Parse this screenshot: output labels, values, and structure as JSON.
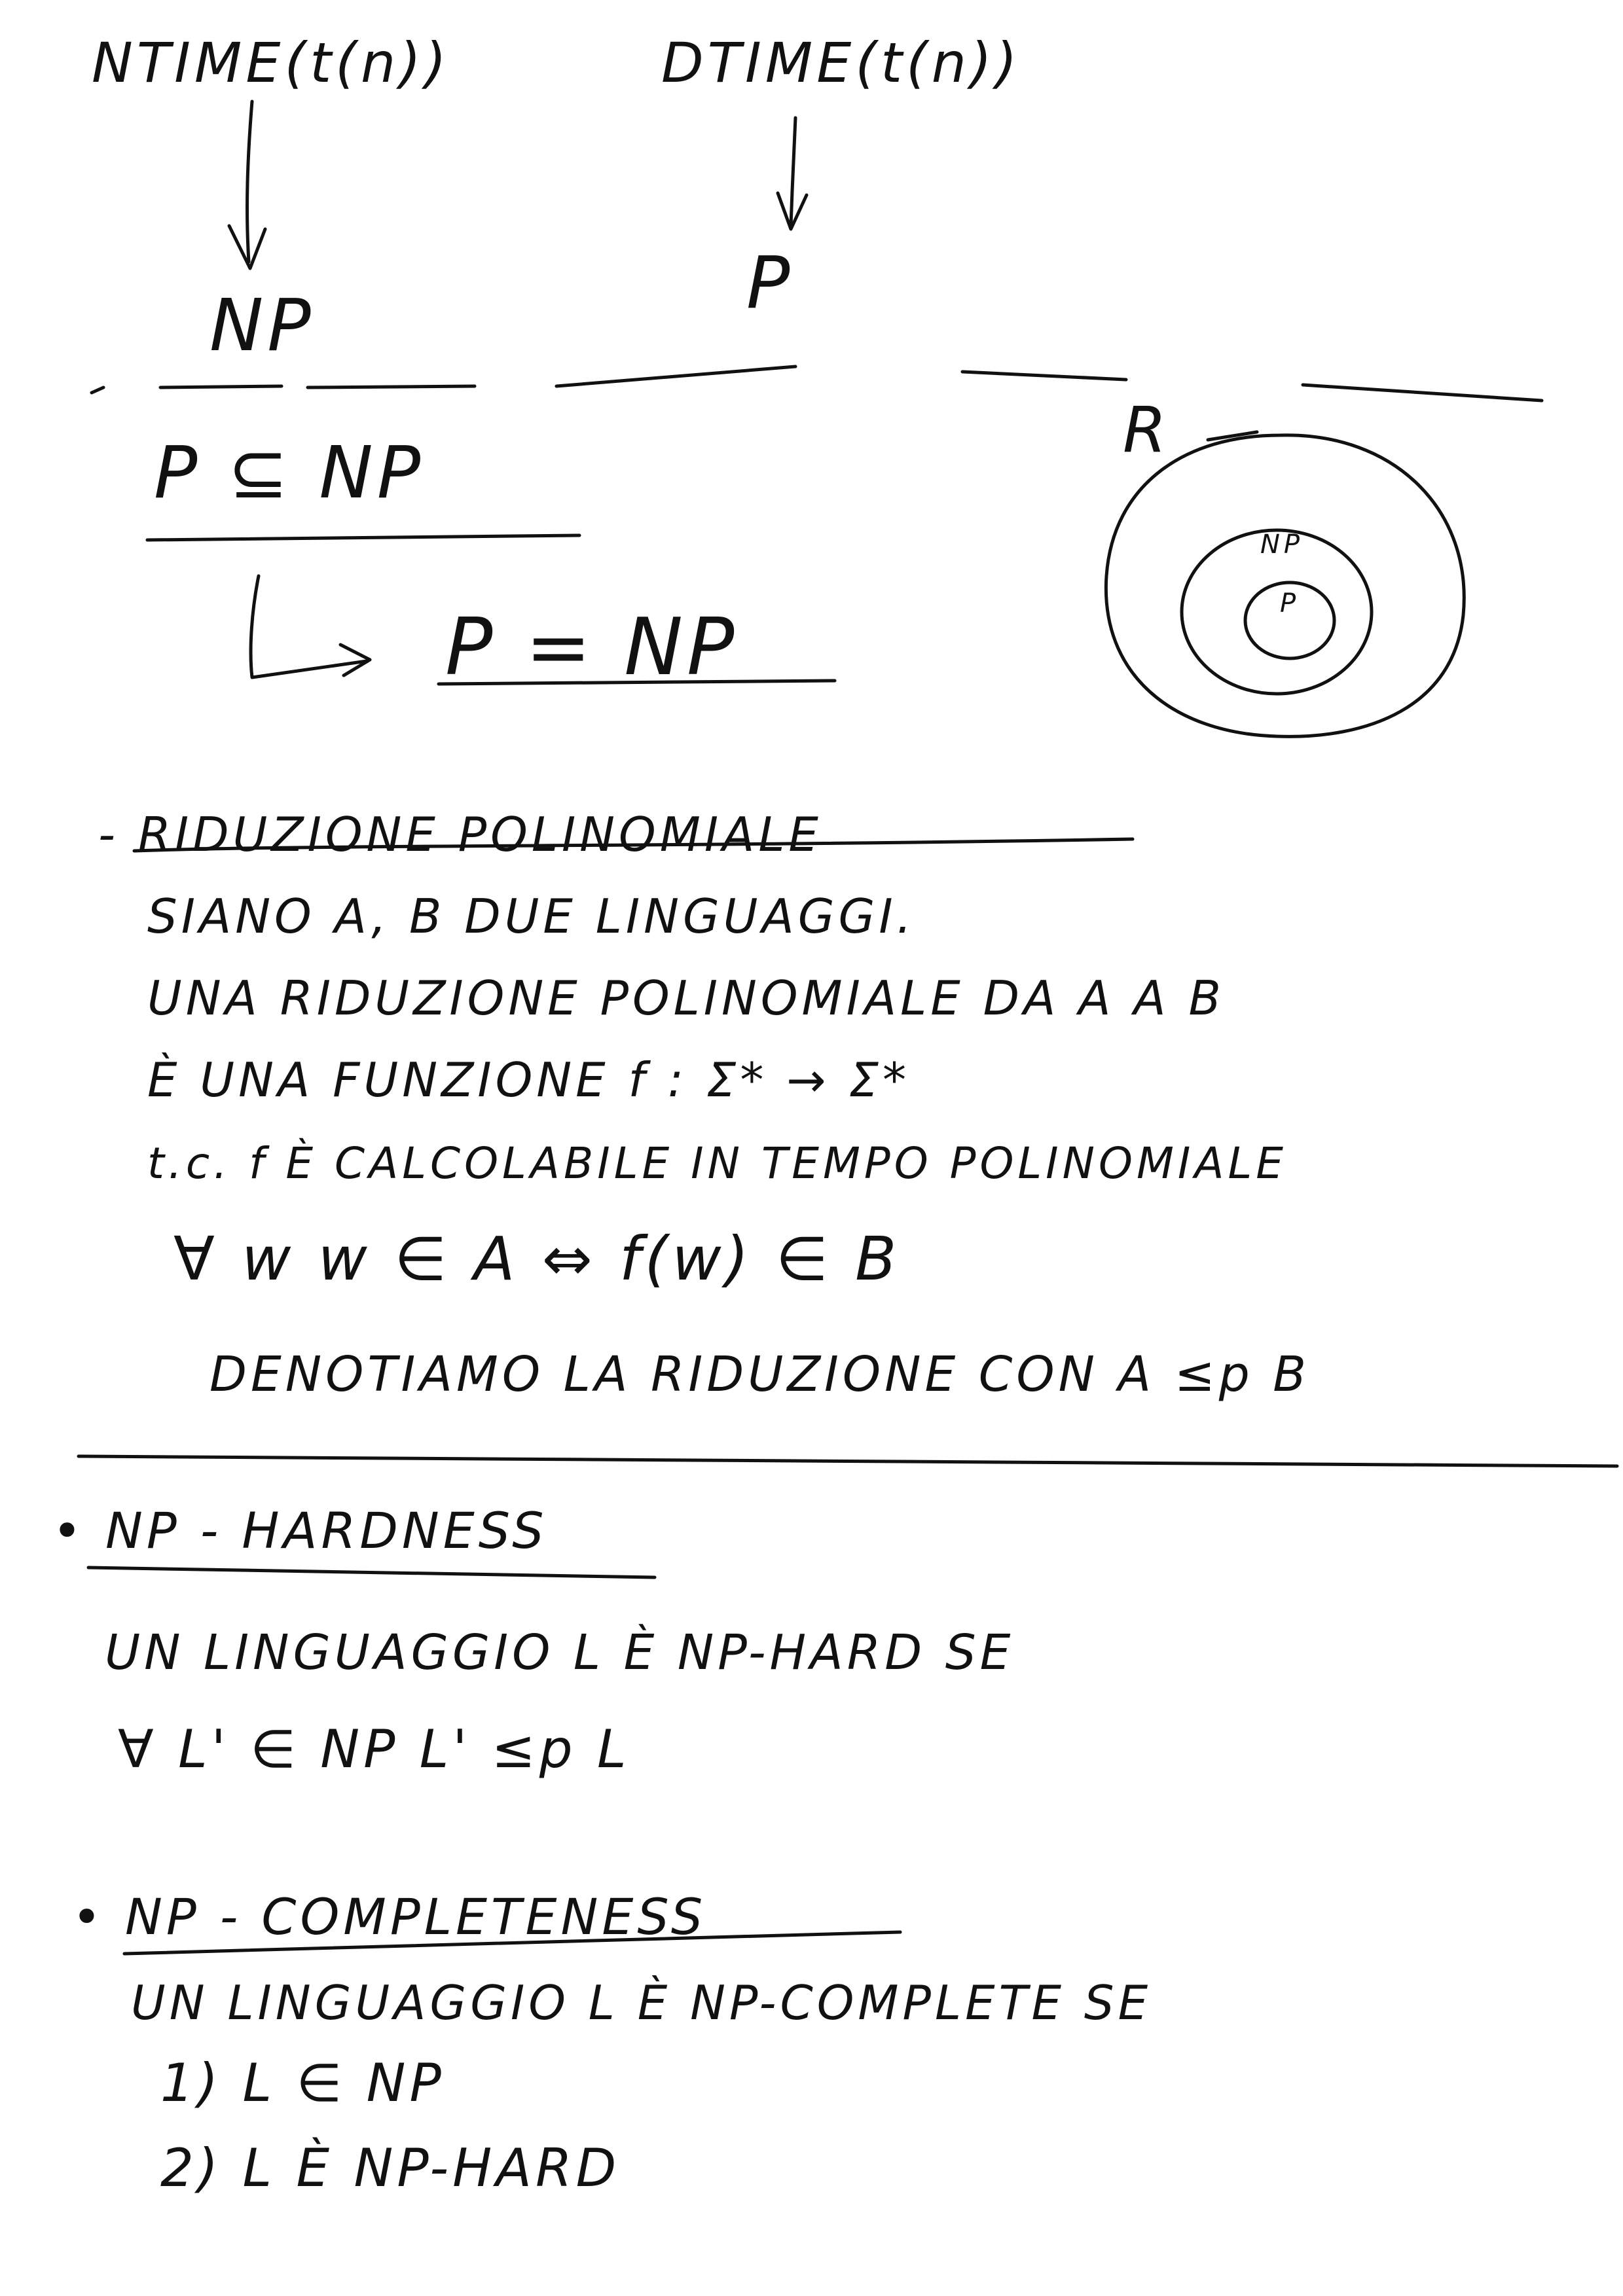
{
  "notes": {
    "top": {
      "ntime": "NTIME(t(n))",
      "dtime": "DTIME(t(n))",
      "np": "NP",
      "p": "P"
    },
    "inclusion": {
      "relation": "P ⊆ NP",
      "question": "P = NP",
      "arrow": "↳"
    },
    "venn": {
      "outer": "R",
      "middle": "NP",
      "inner": "P"
    },
    "reduction": {
      "title": "- RIDUZIONE POLINOMIALE",
      "lines": [
        "SIANO A, B DUE LINGUAGGI.",
        "UNA RIDUZIONE POLINOMIALE DA A A B",
        "È UNA FUNZIONE f : Σ* → Σ*",
        "t.c. f È CALCOLABILE IN TEMPO POLINOMIALE",
        "∀ w    w ∈ A ⇔ f(w) ∈ B",
        "DENOTIAMO LA RIDUZIONE CON A ≤p B"
      ]
    },
    "np_hardness": {
      "title": "• NP - HARDNESS",
      "lines": [
        "UN LINGUAGGIO L È NP-HARD SE",
        "∀ L' ∈ NP        L' ≤p L"
      ]
    },
    "np_completeness": {
      "title": "• NP - COMPLETENESS",
      "lines": [
        "UN LINGUAGGIO L È NP-COMPLETE SE",
        "1)  L ∈ NP",
        "2)  L È NP-HARD"
      ]
    }
  }
}
